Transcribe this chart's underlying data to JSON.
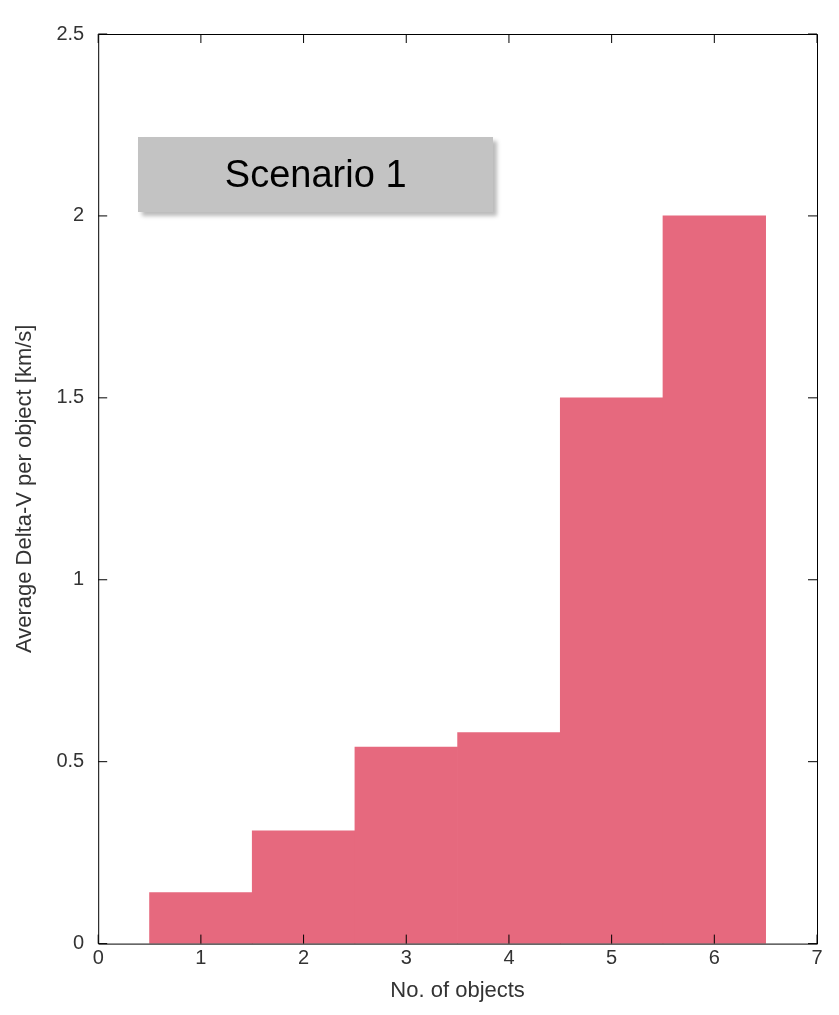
{
  "chart_data": {
    "type": "histogram",
    "xlabel": "No. of objects",
    "ylabel": "Average Delta-V per object [km/s]",
    "bins": [
      0.5,
      1.5,
      2.5,
      3.5,
      4.5,
      5.5,
      6.5
    ],
    "values": [
      0.14,
      0.31,
      0.54,
      0.58,
      1.5,
      2.0
    ],
    "color": "#e6697e",
    "xlim": [
      0,
      7
    ],
    "xticks": [
      0,
      1,
      2,
      3,
      4,
      5,
      6,
      7
    ],
    "ylim": [
      0,
      2.5
    ],
    "yticks": [
      0,
      0.5,
      1,
      1.5,
      2,
      2.5
    ],
    "grid": false,
    "legend": false,
    "annotations": [
      "Scenario 1"
    ]
  }
}
